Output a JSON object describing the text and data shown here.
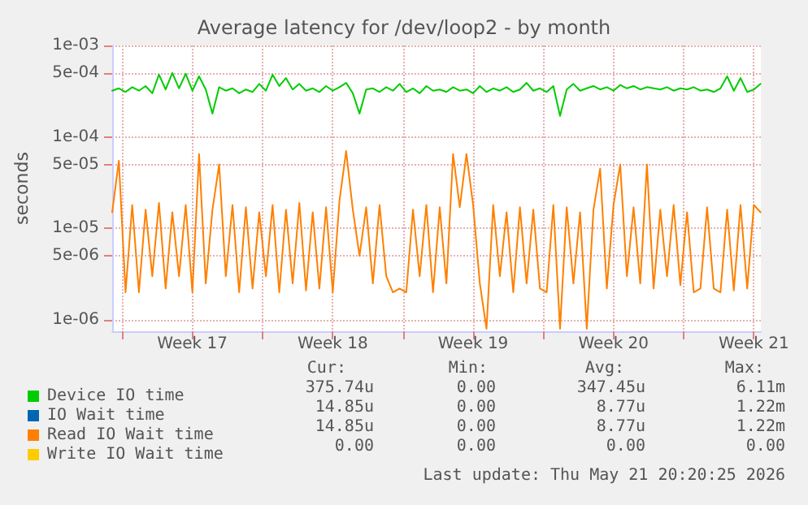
{
  "chart_data": {
    "type": "line",
    "title": "Average latency for /dev/loop2 - by month",
    "ylabel": "seconds",
    "log": "y",
    "grid": true,
    "legend": "bottom left",
    "marker": "none",
    "line_style": "solid",
    "xlim": [
      "2026-04-19T12:00",
      "2026-05-21T20:20"
    ],
    "xticks": [
      {
        "value": "2026-04-20T00:00",
        "label": null
      },
      {
        "value": "2026-04-23T12:00",
        "label": "Week 17"
      },
      {
        "value": "2026-04-27T00:00",
        "label": null
      },
      {
        "value": "2026-04-30T12:00",
        "label": "Week 18"
      },
      {
        "value": "2026-05-04T00:00",
        "label": null
      },
      {
        "value": "2026-05-07T12:00",
        "label": "Week 19"
      },
      {
        "value": "2026-05-11T00:00",
        "label": null
      },
      {
        "value": "2026-05-14T12:00",
        "label": "Week 20"
      },
      {
        "value": "2026-05-18T00:00",
        "label": null
      },
      {
        "value": "2026-05-21T12:00",
        "label": "Week 21"
      }
    ],
    "ylim": [
      7.5e-07,
      0.001
    ],
    "yticks": [
      {
        "value": 0.001,
        "label": "1e-03"
      },
      {
        "value": 0.0005,
        "label": "5e-04"
      },
      {
        "value": 0.0001,
        "label": "1e-04"
      },
      {
        "value": 5e-05,
        "label": "5e-05"
      },
      {
        "value": 1e-05,
        "label": "1e-05"
      },
      {
        "value": 5e-06,
        "label": "5e-06"
      },
      {
        "value": 1e-06,
        "label": "1e-06"
      }
    ],
    "x": [
      "2026-04-19T12:00",
      "2026-04-19T20:00",
      "2026-04-20T04:00",
      "2026-04-20T12:00",
      "2026-04-20T20:00",
      "2026-04-21T04:00",
      "2026-04-21T12:00",
      "2026-04-21T20:00",
      "2026-04-22T04:00",
      "2026-04-22T12:00",
      "2026-04-22T20:00",
      "2026-04-23T04:00",
      "2026-04-23T12:00",
      "2026-04-23T20:00",
      "2026-04-24T04:00",
      "2026-04-24T12:00",
      "2026-04-24T20:00",
      "2026-04-25T04:00",
      "2026-04-25T12:00",
      "2026-04-25T20:00",
      "2026-04-26T04:00",
      "2026-04-26T12:00",
      "2026-04-26T20:00",
      "2026-04-27T04:00",
      "2026-04-27T12:00",
      "2026-04-27T20:00",
      "2026-04-28T04:00",
      "2026-04-28T12:00",
      "2026-04-28T20:00",
      "2026-04-29T04:00",
      "2026-04-29T12:00",
      "2026-04-29T20:00",
      "2026-04-30T04:00",
      "2026-04-30T12:00",
      "2026-04-30T20:00",
      "2026-05-01T04:00",
      "2026-05-01T12:00",
      "2026-05-01T20:00",
      "2026-05-02T04:00",
      "2026-05-02T12:00",
      "2026-05-02T20:00",
      "2026-05-03T04:00",
      "2026-05-03T12:00",
      "2026-05-03T20:00",
      "2026-05-04T04:00",
      "2026-05-04T12:00",
      "2026-05-04T20:00",
      "2026-05-05T04:00",
      "2026-05-05T12:00",
      "2026-05-05T20:00",
      "2026-05-06T04:00",
      "2026-05-06T12:00",
      "2026-05-06T20:00",
      "2026-05-07T04:00",
      "2026-05-07T12:00",
      "2026-05-07T20:00",
      "2026-05-08T04:00",
      "2026-05-08T12:00",
      "2026-05-08T20:00",
      "2026-05-09T04:00",
      "2026-05-09T12:00",
      "2026-05-09T20:00",
      "2026-05-10T04:00",
      "2026-05-10T12:00",
      "2026-05-10T20:00",
      "2026-05-11T04:00",
      "2026-05-11T12:00",
      "2026-05-11T20:00",
      "2026-05-12T04:00",
      "2026-05-12T12:00",
      "2026-05-12T20:00",
      "2026-05-13T04:00",
      "2026-05-13T12:00",
      "2026-05-13T20:00",
      "2026-05-14T04:00",
      "2026-05-14T12:00",
      "2026-05-14T20:00",
      "2026-05-15T04:00",
      "2026-05-15T12:00",
      "2026-05-15T20:00",
      "2026-05-16T04:00",
      "2026-05-16T12:00",
      "2026-05-16T20:00",
      "2026-05-17T04:00",
      "2026-05-17T12:00",
      "2026-05-17T20:00",
      "2026-05-18T04:00",
      "2026-05-18T12:00",
      "2026-05-18T20:00",
      "2026-05-19T04:00",
      "2026-05-19T12:00",
      "2026-05-19T20:00",
      "2026-05-20T04:00",
      "2026-05-20T12:00",
      "2026-05-20T20:00",
      "2026-05-21T04:00",
      "2026-05-21T12:00",
      "2026-05-21T20:00"
    ],
    "series": [
      {
        "name": "Device IO time",
        "color": "#00cc00",
        "values": [
          0.00032,
          0.00034,
          0.00031,
          0.00035,
          0.00032,
          0.00036,
          0.0003,
          0.00048,
          0.00033,
          0.0005,
          0.00034,
          0.00049,
          0.00032,
          0.00046,
          0.00033,
          0.00018,
          0.00035,
          0.00032,
          0.00034,
          0.0003,
          0.00033,
          0.00031,
          0.00038,
          0.00032,
          0.00048,
          0.00036,
          0.00044,
          0.00033,
          0.00038,
          0.00032,
          0.00034,
          0.00031,
          0.00036,
          0.00032,
          0.00035,
          0.00039,
          0.0003,
          0.00018,
          0.00033,
          0.00034,
          0.00031,
          0.00035,
          0.00032,
          0.00038,
          0.00031,
          0.00034,
          0.0003,
          0.00036,
          0.00032,
          0.00033,
          0.00031,
          0.00035,
          0.00032,
          0.00033,
          0.0003,
          0.00036,
          0.00031,
          0.00034,
          0.00032,
          0.00035,
          0.00031,
          0.00033,
          0.00039,
          0.00032,
          0.00034,
          0.00031,
          0.00036,
          0.00017,
          0.00033,
          0.00038,
          0.00032,
          0.00034,
          0.00036,
          0.00033,
          0.00035,
          0.00032,
          0.00037,
          0.00034,
          0.00036,
          0.00033,
          0.00035,
          0.00034,
          0.00033,
          0.00035,
          0.00032,
          0.00034,
          0.00033,
          0.00035,
          0.00032,
          0.00033,
          0.00031,
          0.00034,
          0.00046,
          0.00032,
          0.00044,
          0.00031,
          0.00033,
          0.00038
        ]
      },
      {
        "name": "IO Wait time",
        "color": "#0066b3",
        "values": [
          null,
          null,
          null,
          null,
          null,
          null,
          null,
          null,
          null,
          null,
          null,
          null,
          null,
          null,
          null,
          null,
          null,
          null,
          null,
          null,
          null,
          null,
          null,
          null,
          null,
          null,
          null,
          null,
          null,
          null,
          null,
          null,
          null,
          null,
          null,
          null,
          null,
          null,
          null,
          null,
          null,
          null,
          null,
          null,
          null,
          null,
          null,
          null,
          null,
          null,
          null,
          null,
          null,
          null,
          null,
          null,
          null,
          null,
          null,
          null,
          null,
          null,
          null,
          null,
          null,
          null,
          null,
          null,
          null,
          null,
          null,
          null,
          null,
          null,
          null,
          null,
          null,
          null,
          null,
          null,
          null,
          null,
          null,
          null,
          null,
          null,
          null,
          null,
          null,
          null,
          null,
          null,
          null,
          null,
          null,
          null,
          null,
          null
        ]
      },
      {
        "name": "Read IO Wait time",
        "color": "#ff8000",
        "values": [
          1.5e-05,
          5.5e-05,
          2e-06,
          1.8e-05,
          2e-06,
          1.6e-05,
          3e-06,
          1.9e-05,
          2.2e-06,
          1.5e-05,
          3e-06,
          1.8e-05,
          2e-06,
          6.5e-05,
          2.5e-06,
          1.6e-05,
          5e-05,
          3e-06,
          1.8e-05,
          2e-06,
          1.7e-05,
          2.2e-06,
          1.5e-05,
          3e-06,
          1.8e-05,
          2e-06,
          1.6e-05,
          2.5e-06,
          1.9e-05,
          2.1e-06,
          1.5e-05,
          2.2e-06,
          1.7e-05,
          2e-06,
          2e-05,
          7e-05,
          1.6e-05,
          5e-06,
          1.7e-05,
          2.5e-06,
          1.8e-05,
          3e-06,
          2e-06,
          2.2e-06,
          2e-06,
          1.6e-05,
          3e-06,
          1.8e-05,
          2e-06,
          1.7e-05,
          2.5e-06,
          6.5e-05,
          1.7e-05,
          6.5e-05,
          1.8e-05,
          2.5e-06,
          8e-07,
          1.8e-05,
          3e-06,
          1.5e-05,
          2e-06,
          1.7e-05,
          2.5e-06,
          1.6e-05,
          2.2e-06,
          2e-06,
          1.8e-05,
          8e-07,
          1.7e-05,
          2.5e-06,
          1.5e-05,
          8e-07,
          1.6e-05,
          4.5e-05,
          2.2e-06,
          1.8e-05,
          5e-05,
          3e-06,
          1.7e-05,
          2.5e-06,
          5e-05,
          2.2e-06,
          1.6e-05,
          3e-06,
          1.8e-05,
          2.4e-06,
          1.5e-05,
          2e-06,
          2.2e-06,
          1.7e-05,
          2.2e-06,
          2e-06,
          1.6e-05,
          2.1e-06,
          1.8e-05,
          2.2e-06,
          1.8e-05,
          1.5e-05
        ]
      },
      {
        "name": "Write IO Wait time",
        "color": "#ffcc00",
        "values": [
          null,
          null,
          null,
          null,
          null,
          null,
          null,
          null,
          null,
          null,
          null,
          null,
          null,
          null,
          null,
          null,
          null,
          null,
          null,
          null,
          null,
          null,
          null,
          null,
          null,
          null,
          null,
          null,
          null,
          null,
          null,
          null,
          null,
          null,
          null,
          null,
          null,
          null,
          null,
          null,
          null,
          null,
          null,
          null,
          null,
          null,
          null,
          null,
          null,
          null,
          null,
          null,
          null,
          null,
          null,
          null,
          null,
          null,
          null,
          null,
          null,
          null,
          null,
          null,
          null,
          null,
          null,
          null,
          null,
          null,
          null,
          null,
          null,
          null,
          null,
          null,
          null,
          null,
          null,
          null,
          null,
          null,
          null,
          null,
          null,
          null,
          null,
          null,
          null,
          null,
          null,
          null,
          null,
          null,
          null,
          null,
          null,
          null
        ]
      }
    ],
    "annotations": [
      "Cur:",
      "Min:",
      "Avg:",
      "Max:",
      "375.74u",
      "0.00",
      "347.45u",
      "6.11m",
      "14.85u",
      "0.00",
      "8.77u",
      "1.22m",
      "14.85u",
      "0.00",
      "8.77u",
      "1.22m",
      "0.00",
      "0.00",
      "0.00",
      "0.00",
      "Last update: Thu May 21 20:20:25 2026"
    ]
  }
}
